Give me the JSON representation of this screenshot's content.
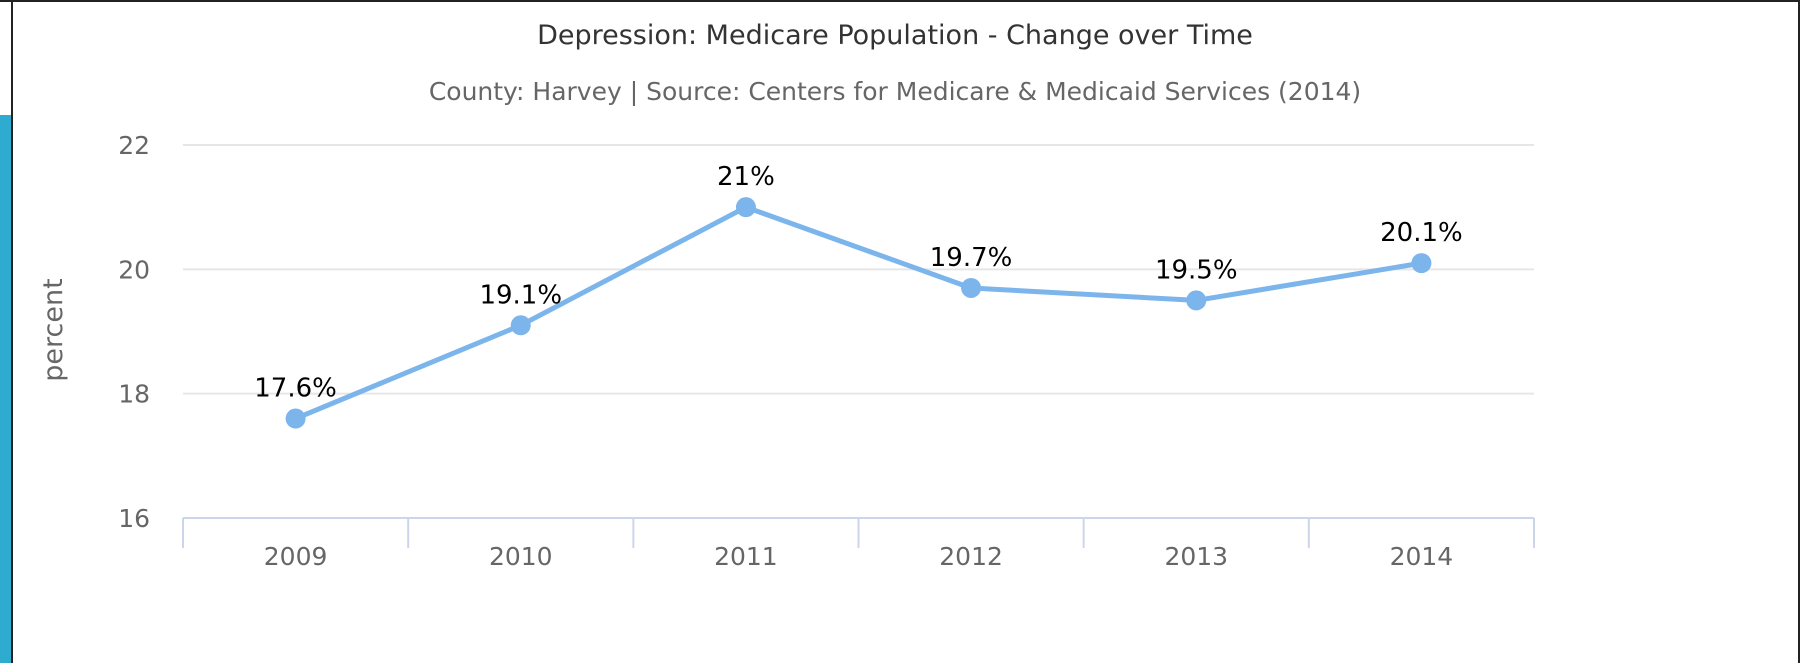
{
  "chart_data": {
    "type": "line",
    "title": "Depression: Medicare Population - Change over Time",
    "subtitle": "County: Harvey | Source: Centers for Medicare & Medicaid Services (2014)",
    "ylabel": "percent",
    "categories": [
      "2009",
      "2010",
      "2011",
      "2012",
      "2013",
      "2014"
    ],
    "y_ticks": [
      "16",
      "18",
      "20",
      "22"
    ],
    "ylim": [
      16,
      22
    ],
    "series": [
      {
        "values": [
          17.6,
          19.1,
          21,
          19.7,
          19.5,
          20.1
        ],
        "labels": [
          "17.6%",
          "19.1%",
          "21%",
          "19.7%",
          "19.5%",
          "20.1%"
        ],
        "color": "#7cb5ec"
      }
    ],
    "grid": true,
    "legend": "none"
  }
}
